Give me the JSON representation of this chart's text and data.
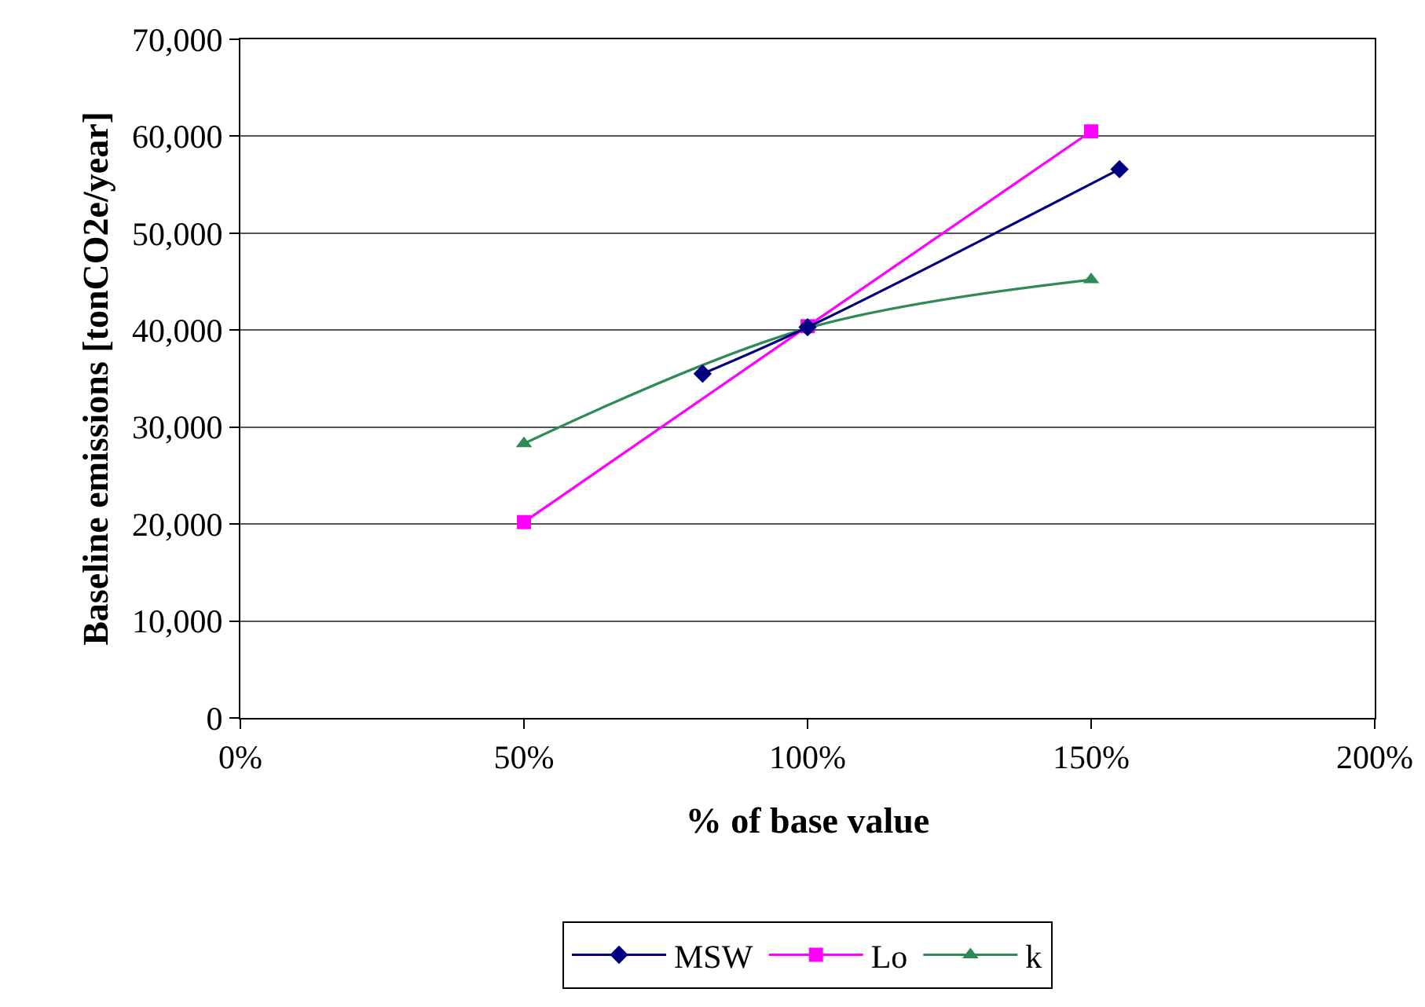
{
  "chart_data": {
    "type": "line",
    "xlabel": "% of base value",
    "ylabel": "Baseline emissions [tonCO2e/year]",
    "xlim": [
      0,
      200
    ],
    "xticks": [
      {
        "value": 0,
        "label": "0%"
      },
      {
        "value": 50,
        "label": "50%"
      },
      {
        "value": 100,
        "label": "100%"
      },
      {
        "value": 150,
        "label": "150%"
      },
      {
        "value": 200,
        "label": "200%"
      }
    ],
    "ylim": [
      0,
      70000
    ],
    "yticks": [
      {
        "value": 0,
        "label": "0"
      },
      {
        "value": 10000,
        "label": "10,000"
      },
      {
        "value": 20000,
        "label": "20,000"
      },
      {
        "value": 30000,
        "label": "30,000"
      },
      {
        "value": 40000,
        "label": "40,000"
      },
      {
        "value": 50000,
        "label": "50,000"
      },
      {
        "value": 60000,
        "label": "60,000"
      },
      {
        "value": 70000,
        "label": "70,000"
      }
    ],
    "grid": "y",
    "legend": "bottom",
    "line_style": "solid",
    "series": [
      {
        "name": "MSW",
        "color": "#000080",
        "marker": "diamond",
        "x": [
          81.5,
          100,
          155
        ],
        "values": [
          35500,
          40300,
          56600
        ]
      },
      {
        "name": "Lo",
        "color": "#ff00ff",
        "marker": "square",
        "x": [
          50,
          100,
          150
        ],
        "values": [
          20200,
          40400,
          60500
        ]
      },
      {
        "name": "k",
        "color": "#2e8b57",
        "marker": "triangle",
        "x": [
          50,
          100,
          150
        ],
        "values": [
          28300,
          40200,
          45200
        ]
      }
    ]
  }
}
